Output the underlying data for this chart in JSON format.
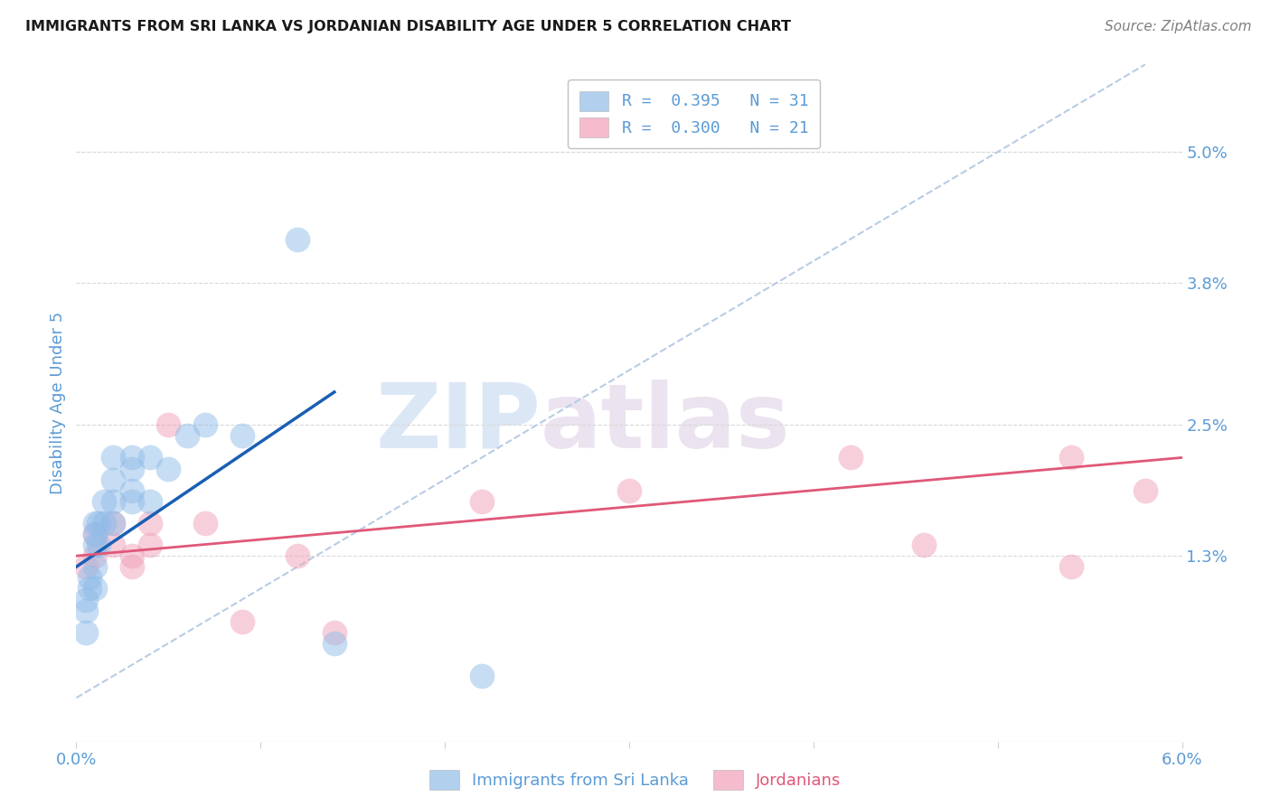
{
  "title": "IMMIGRANTS FROM SRI LANKA VS JORDANIAN DISABILITY AGE UNDER 5 CORRELATION CHART",
  "source": "Source: ZipAtlas.com",
  "ylabel": "Disability Age Under 5",
  "xlim": [
    0.0,
    0.06
  ],
  "ylim": [
    -0.004,
    0.058
  ],
  "xticks": [
    0.0,
    0.01,
    0.02,
    0.03,
    0.04,
    0.05,
    0.06
  ],
  "xticklabels": [
    "0.0%",
    "",
    "",
    "",
    "",
    "",
    "6.0%"
  ],
  "ytick_positions": [
    0.013,
    0.025,
    0.038,
    0.05
  ],
  "ytick_labels": [
    "1.3%",
    "2.5%",
    "3.8%",
    "5.0%"
  ],
  "legend_label1": "R =  0.395   N = 31",
  "legend_label2": "R =  0.300   N = 21",
  "blue_scatter_x": [
    0.0005,
    0.0005,
    0.0005,
    0.0007,
    0.0007,
    0.001,
    0.001,
    0.001,
    0.001,
    0.001,
    0.0012,
    0.0012,
    0.0015,
    0.0015,
    0.002,
    0.002,
    0.002,
    0.002,
    0.003,
    0.003,
    0.003,
    0.003,
    0.004,
    0.004,
    0.005,
    0.006,
    0.007,
    0.009,
    0.012,
    0.014,
    0.022
  ],
  "blue_scatter_y": [
    0.006,
    0.008,
    0.009,
    0.01,
    0.011,
    0.01,
    0.012,
    0.014,
    0.015,
    0.016,
    0.014,
    0.016,
    0.016,
    0.018,
    0.016,
    0.018,
    0.02,
    0.022,
    0.018,
    0.019,
    0.021,
    0.022,
    0.018,
    0.022,
    0.021,
    0.024,
    0.025,
    0.024,
    0.042,
    0.005,
    0.002
  ],
  "pink_scatter_x": [
    0.0005,
    0.001,
    0.001,
    0.002,
    0.002,
    0.003,
    0.003,
    0.004,
    0.004,
    0.005,
    0.007,
    0.009,
    0.012,
    0.014,
    0.022,
    0.03,
    0.042,
    0.046,
    0.054,
    0.058,
    0.054
  ],
  "pink_scatter_y": [
    0.012,
    0.013,
    0.015,
    0.014,
    0.016,
    0.012,
    0.013,
    0.014,
    0.016,
    0.025,
    0.016,
    0.007,
    0.013,
    0.006,
    0.018,
    0.019,
    0.022,
    0.014,
    0.022,
    0.019,
    0.012
  ],
  "blue_line_x": [
    0.0,
    0.014
  ],
  "blue_line_y": [
    0.012,
    0.028
  ],
  "pink_line_x": [
    0.0,
    0.06
  ],
  "pink_line_y": [
    0.013,
    0.022
  ],
  "diag_line_x": [
    0.0,
    0.058
  ],
  "diag_line_y": [
    0.0,
    0.058
  ],
  "watermark_zip": "ZIP",
  "watermark_atlas": "atlas",
  "blue_color": "#90bce8",
  "pink_color": "#f0a0b8",
  "blue_line_color": "#1a5fb4",
  "pink_line_color": "#e05878",
  "diag_line_color": "#b8cce4",
  "title_color": "#1a1a1a",
  "axis_color": "#5b9bd5",
  "tick_color": "#5b9bd5",
  "background_color": "#ffffff",
  "grid_color": "#d9d9d9",
  "border_color": "#d0d0d0"
}
